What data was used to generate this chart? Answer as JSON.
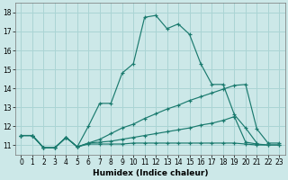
{
  "xlabel": "Humidex (Indice chaleur)",
  "xlim": [
    -0.5,
    23.5
  ],
  "ylim": [
    10.5,
    18.5
  ],
  "yticks": [
    11,
    12,
    13,
    14,
    15,
    16,
    17,
    18
  ],
  "xticks": [
    0,
    1,
    2,
    3,
    4,
    5,
    6,
    7,
    8,
    9,
    10,
    11,
    12,
    13,
    14,
    15,
    16,
    17,
    18,
    19,
    20,
    21,
    22,
    23
  ],
  "bg_color": "#cce8e8",
  "grid_color": "#aad4d4",
  "line_color": "#1a7a6e",
  "series": [
    {
      "x": [
        0,
        1,
        2,
        3,
        4,
        5,
        6,
        7,
        8,
        9,
        10,
        11,
        12,
        13,
        14,
        15,
        16,
        17,
        18,
        19,
        20,
        21
      ],
      "y": [
        11.5,
        11.5,
        10.85,
        10.85,
        11.4,
        10.9,
        12.0,
        13.2,
        13.2,
        14.8,
        15.3,
        17.75,
        17.85,
        17.15,
        17.4,
        16.85,
        15.3,
        14.2,
        14.2,
        12.6,
        11.9,
        11.1
      ]
    },
    {
      "x": [
        0,
        1,
        2,
        3,
        4,
        5,
        6,
        7,
        8,
        9,
        10,
        11,
        12,
        13,
        14,
        15,
        16,
        17,
        18,
        19,
        20,
        21,
        22,
        23
      ],
      "y": [
        11.5,
        11.5,
        10.85,
        10.85,
        11.4,
        10.9,
        11.1,
        11.3,
        11.6,
        11.9,
        12.1,
        12.4,
        12.65,
        12.9,
        13.1,
        13.35,
        13.55,
        13.75,
        13.95,
        14.15,
        14.2,
        11.85,
        11.1,
        11.1
      ]
    },
    {
      "x": [
        0,
        1,
        2,
        3,
        4,
        5,
        6,
        7,
        8,
        9,
        10,
        11,
        12,
        13,
        14,
        15,
        16,
        17,
        18,
        19,
        20,
        21,
        22,
        23
      ],
      "y": [
        11.5,
        11.5,
        10.85,
        10.85,
        11.4,
        10.9,
        11.1,
        11.15,
        11.2,
        11.3,
        11.4,
        11.5,
        11.6,
        11.7,
        11.8,
        11.9,
        12.05,
        12.15,
        12.3,
        12.5,
        11.15,
        11.05,
        11.0,
        11.0
      ]
    },
    {
      "x": [
        0,
        1,
        2,
        3,
        4,
        5,
        6,
        7,
        8,
        9,
        10,
        11,
        12,
        13,
        14,
        15,
        16,
        17,
        18,
        19,
        20,
        21,
        22,
        23
      ],
      "y": [
        11.5,
        11.5,
        10.85,
        10.85,
        11.4,
        10.9,
        11.05,
        11.05,
        11.05,
        11.05,
        11.1,
        11.1,
        11.1,
        11.1,
        11.1,
        11.1,
        11.1,
        11.1,
        11.1,
        11.1,
        11.05,
        11.0,
        11.0,
        11.0
      ]
    }
  ]
}
